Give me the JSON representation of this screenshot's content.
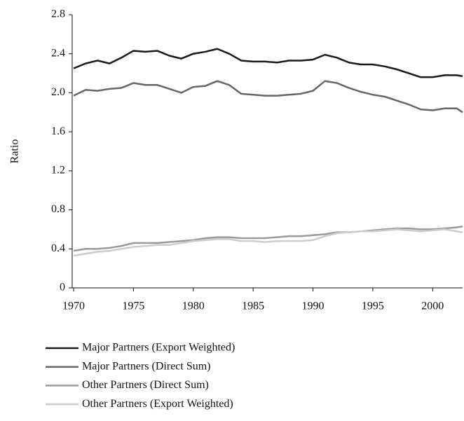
{
  "chart_data": {
    "type": "line",
    "y_label": "Ratio",
    "x": [
      1970,
      1971,
      1972,
      1973,
      1974,
      1975,
      1976,
      1977,
      1978,
      1979,
      1980,
      1981,
      1982,
      1983,
      1984,
      1985,
      1986,
      1987,
      1988,
      1989,
      1990,
      1991,
      1992,
      1993,
      1994,
      1995,
      1996,
      1997,
      1998,
      1999,
      2000,
      2001,
      2002,
      2002.5
    ],
    "series": [
      {
        "name": "Major Partners (Export Weighted)",
        "color": "#1a1a1a",
        "values": [
          2.25,
          2.3,
          2.33,
          2.3,
          2.36,
          2.43,
          2.42,
          2.43,
          2.38,
          2.35,
          2.4,
          2.42,
          2.45,
          2.4,
          2.33,
          2.32,
          2.32,
          2.31,
          2.33,
          2.33,
          2.34,
          2.39,
          2.36,
          2.31,
          2.29,
          2.29,
          2.27,
          2.24,
          2.2,
          2.16,
          2.16,
          2.18,
          2.18,
          2.17
        ]
      },
      {
        "name": "Major Partners (Direct Sum)",
        "color": "#666666",
        "values": [
          1.97,
          2.03,
          2.02,
          2.04,
          2.05,
          2.1,
          2.08,
          2.08,
          2.04,
          2.0,
          2.06,
          2.07,
          2.12,
          2.08,
          1.99,
          1.98,
          1.97,
          1.97,
          1.98,
          1.99,
          2.02,
          2.12,
          2.1,
          2.05,
          2.01,
          1.98,
          1.96,
          1.92,
          1.88,
          1.83,
          1.82,
          1.84,
          1.84,
          1.8
        ]
      },
      {
        "name": "Other Partners (Direct Sum)",
        "color": "#9a9a9a",
        "values": [
          0.38,
          0.4,
          0.4,
          0.41,
          0.43,
          0.46,
          0.46,
          0.46,
          0.47,
          0.48,
          0.49,
          0.51,
          0.52,
          0.52,
          0.51,
          0.51,
          0.51,
          0.52,
          0.53,
          0.53,
          0.54,
          0.55,
          0.57,
          0.57,
          0.58,
          0.59,
          0.6,
          0.61,
          0.61,
          0.6,
          0.6,
          0.61,
          0.62,
          0.63
        ]
      },
      {
        "name": "Other Partners (Export Weighted)",
        "color": "#cccccc",
        "values": [
          0.33,
          0.35,
          0.37,
          0.38,
          0.4,
          0.42,
          0.43,
          0.44,
          0.44,
          0.46,
          0.48,
          0.49,
          0.5,
          0.5,
          0.48,
          0.48,
          0.47,
          0.48,
          0.48,
          0.48,
          0.49,
          0.53,
          0.56,
          0.57,
          0.58,
          0.58,
          0.59,
          0.6,
          0.59,
          0.58,
          0.59,
          0.6,
          0.58,
          0.57
        ]
      }
    ],
    "xlim": [
      1970,
      2002.5
    ],
    "xticks": [
      1970,
      1975,
      1980,
      1985,
      1990,
      1995,
      2000
    ],
    "ylim": [
      0,
      2.8
    ],
    "yticks": [
      0,
      0.4,
      0.8,
      1.2,
      1.6,
      {
        "value": 2,
        "label": "2.0"
      },
      2.4,
      2.8
    ],
    "grid": false,
    "legend": "bottom-left"
  }
}
